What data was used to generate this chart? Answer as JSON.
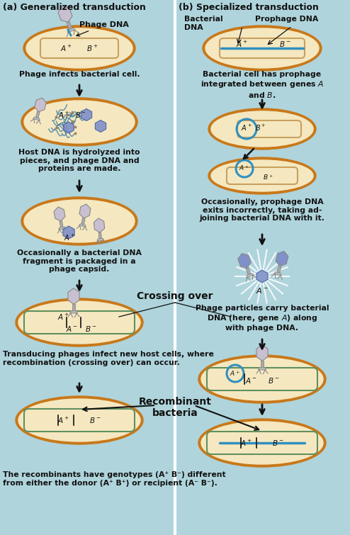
{
  "bg_color": "#afd4dc",
  "cell_outer_color": "#c8781a",
  "cell_inner_color": "#f5e8c0",
  "chrom_color": "#c8a060",
  "phage_dna_color": "#3090c0",
  "arrow_color": "#111111",
  "text_color": "#111111",
  "title_a": "(a) Generalized transduction",
  "title_b": "(b) Specialized transduction",
  "crossing_over": "Crossing over",
  "recombinant": "Recombinant\nbacteria",
  "bottom_text": "The recombinants have genotypes (A⁺ B⁻) different\nfrom either the donor (A⁺ B⁺) or recipient (A⁻ B⁻).",
  "phage_head_color": "#c8c0d0",
  "phage_head_color2": "#8090c8",
  "white": "#ffffff",
  "divider_color": "#ffffff"
}
